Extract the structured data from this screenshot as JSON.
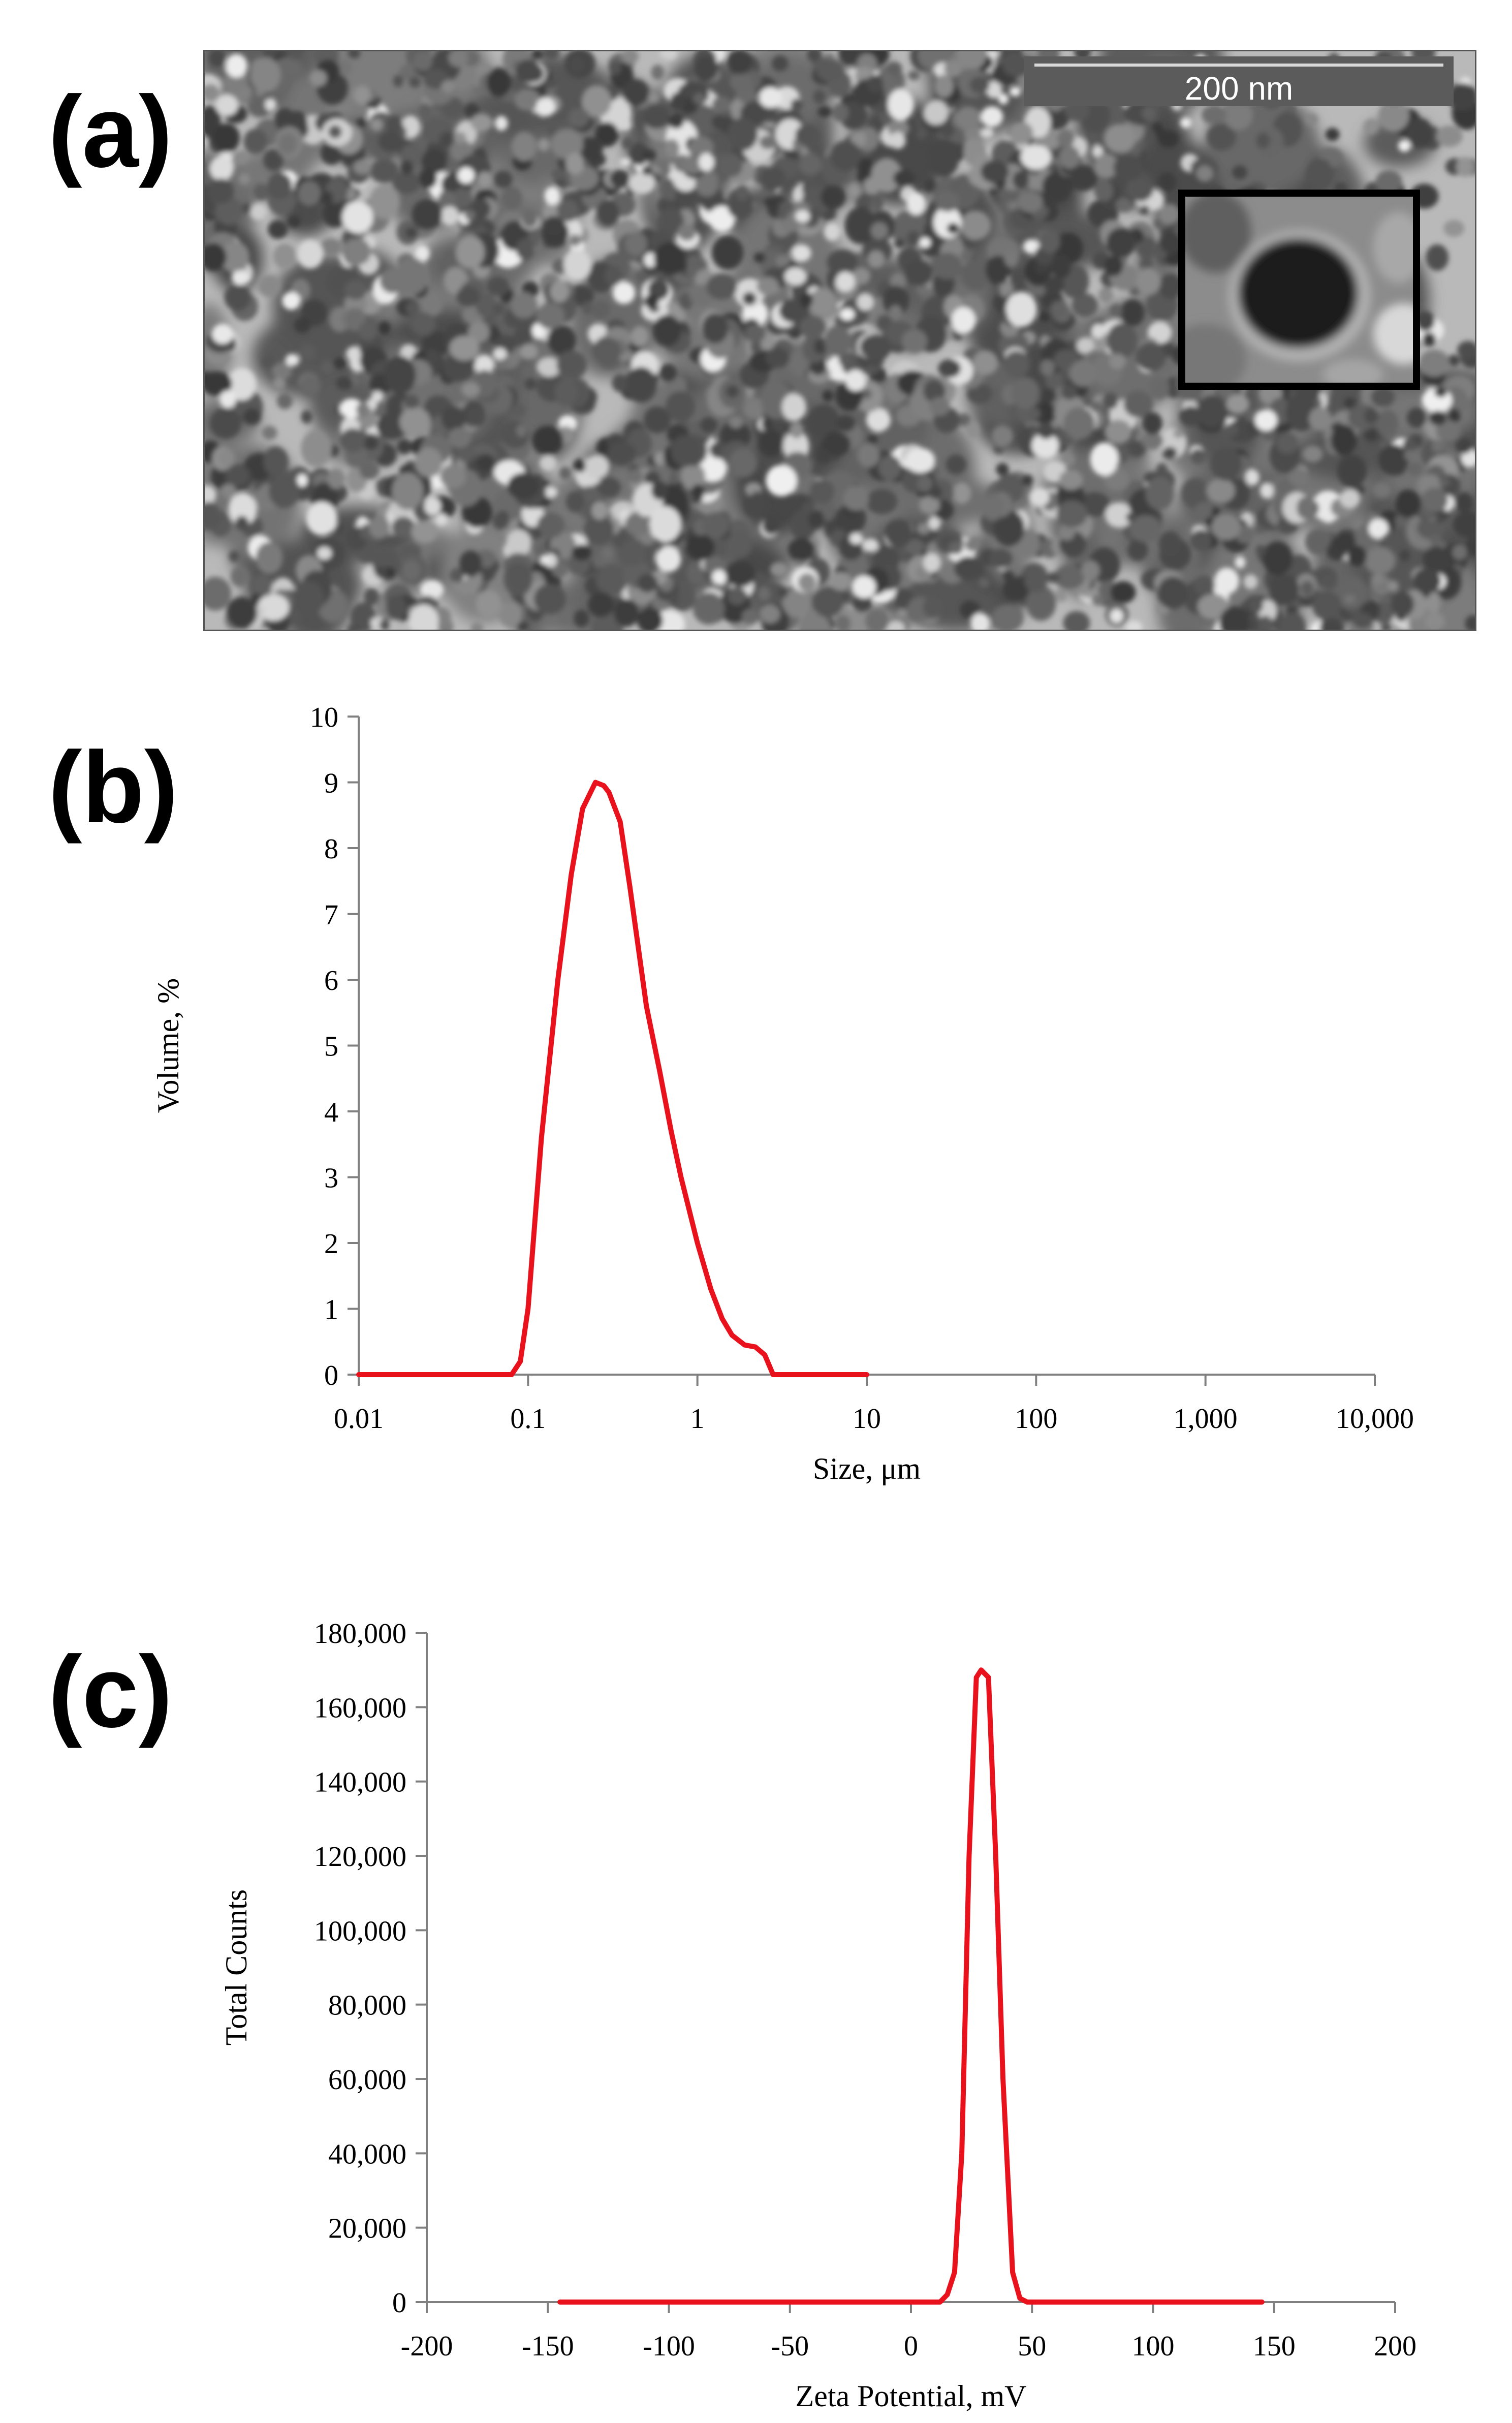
{
  "panels": {
    "a": {
      "label": "(a)",
      "scale_bar": "200 nm"
    },
    "b": {
      "label": "(b)"
    },
    "c": {
      "label": "(c)"
    }
  },
  "chart_data": [
    {
      "type": "line",
      "xlabel": "Size, μm",
      "ylabel": "Volume, %",
      "x_scale": "log",
      "xlim": [
        0.01,
        10000
      ],
      "ylim": [
        0,
        10
      ],
      "x_ticks": [
        {
          "value": 0.01,
          "label": "0.01"
        },
        {
          "value": 0.1,
          "label": "0.1"
        },
        {
          "value": 1,
          "label": "1"
        },
        {
          "value": 10,
          "label": "10"
        },
        {
          "value": 100,
          "label": "100"
        },
        {
          "value": 1000,
          "label": "1,000"
        },
        {
          "value": 10000,
          "label": "10,000"
        }
      ],
      "y_ticks": [
        {
          "value": 0,
          "label": "0"
        },
        {
          "value": 1,
          "label": "1"
        },
        {
          "value": 2,
          "label": "2"
        },
        {
          "value": 3,
          "label": "3"
        },
        {
          "value": 4,
          "label": "4"
        },
        {
          "value": 5,
          "label": "5"
        },
        {
          "value": 6,
          "label": "6"
        },
        {
          "value": 7,
          "label": "7"
        },
        {
          "value": 8,
          "label": "8"
        },
        {
          "value": 9,
          "label": "9"
        },
        {
          "value": 10,
          "label": "10"
        }
      ],
      "grid": false,
      "line_color": "#e8111c",
      "series": [
        {
          "x": [
            0.01,
            0.08,
            0.09,
            0.1,
            0.12,
            0.15,
            0.18,
            0.21,
            0.25,
            0.28,
            0.3,
            0.35,
            0.4,
            0.5,
            0.6,
            0.7,
            0.8,
            1.0,
            1.2,
            1.4,
            1.6,
            1.9,
            2.2,
            2.5,
            2.8,
            10
          ],
          "y": [
            0,
            0,
            0.2,
            1.0,
            3.6,
            6.0,
            7.6,
            8.6,
            9.0,
            8.95,
            8.85,
            8.4,
            7.4,
            5.6,
            4.6,
            3.7,
            3.0,
            2.0,
            1.3,
            0.85,
            0.6,
            0.45,
            0.42,
            0.3,
            0,
            0
          ]
        }
      ]
    },
    {
      "type": "line",
      "xlabel": "Zeta Potential, mV",
      "ylabel": "Total Counts",
      "xlim": [
        -200,
        200
      ],
      "ylim": [
        0,
        180000
      ],
      "x_ticks": [
        {
          "value": -200,
          "label": "-200"
        },
        {
          "value": -150,
          "label": "-150"
        },
        {
          "value": -100,
          "label": "-100"
        },
        {
          "value": -50,
          "label": "-50"
        },
        {
          "value": 0,
          "label": "0"
        },
        {
          "value": 50,
          "label": "50"
        },
        {
          "value": 100,
          "label": "100"
        },
        {
          "value": 150,
          "label": "150"
        },
        {
          "value": 200,
          "label": "200"
        }
      ],
      "y_ticks": [
        {
          "value": 0,
          "label": "0"
        },
        {
          "value": 20000,
          "label": "20,000"
        },
        {
          "value": 40000,
          "label": "40,000"
        },
        {
          "value": 60000,
          "label": "60,000"
        },
        {
          "value": 80000,
          "label": "80,000"
        },
        {
          "value": 100000,
          "label": "100,000"
        },
        {
          "value": 120000,
          "label": "120,000"
        },
        {
          "value": 140000,
          "label": "140,000"
        },
        {
          "value": 160000,
          "label": "160,000"
        },
        {
          "value": 180000,
          "label": "180,000"
        }
      ],
      "grid": false,
      "line_color": "#e8111c",
      "series": [
        {
          "x": [
            -145,
            12,
            15,
            18,
            21,
            24,
            27,
            29,
            32,
            35,
            38,
            42,
            45,
            48,
            145
          ],
          "y": [
            0,
            0,
            2000,
            8000,
            40000,
            120000,
            168000,
            170000,
            168000,
            120000,
            60000,
            8000,
            1000,
            0,
            0
          ]
        }
      ]
    }
  ]
}
